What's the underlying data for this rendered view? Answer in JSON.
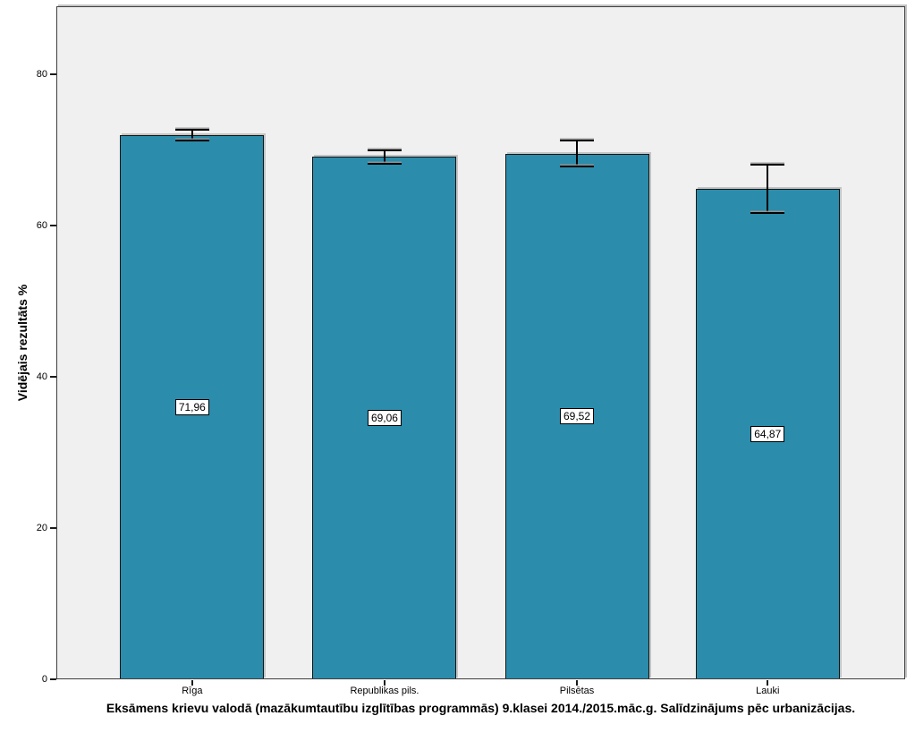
{
  "figure": {
    "background": "#ffffff",
    "plot_background": "#f0f0f0",
    "frame_color": "#3f3f3f"
  },
  "chart_data": {
    "type": "bar",
    "title": "Eksāmens krievu valodā (mazākumtautību izglītības programmās) 9.klasei 2014./2015.māc.g. Salīdzinājums pēc urbanizācijas.",
    "ylabel": "Vidējais rezultāts %",
    "xlabel": "",
    "categories": [
      "Rīga",
      "Republikas pils.",
      "Pilsētas",
      "Lauki"
    ],
    "values": [
      71.96,
      69.06,
      69.52,
      64.87
    ],
    "value_labels": [
      "71,96",
      "69,06",
      "69,52",
      "64,87"
    ],
    "error_bars_plus_minus": [
      0.7,
      0.9,
      1.75,
      3.15
    ],
    "yticks": [
      0,
      20,
      40,
      60,
      80
    ],
    "ylim": [
      0,
      89
    ],
    "grid": false,
    "legend_position": "none",
    "bar_color": "#2b8cab",
    "bar_border_color": "#141414",
    "value_label_style": "white box, black border, centered inside bar"
  }
}
